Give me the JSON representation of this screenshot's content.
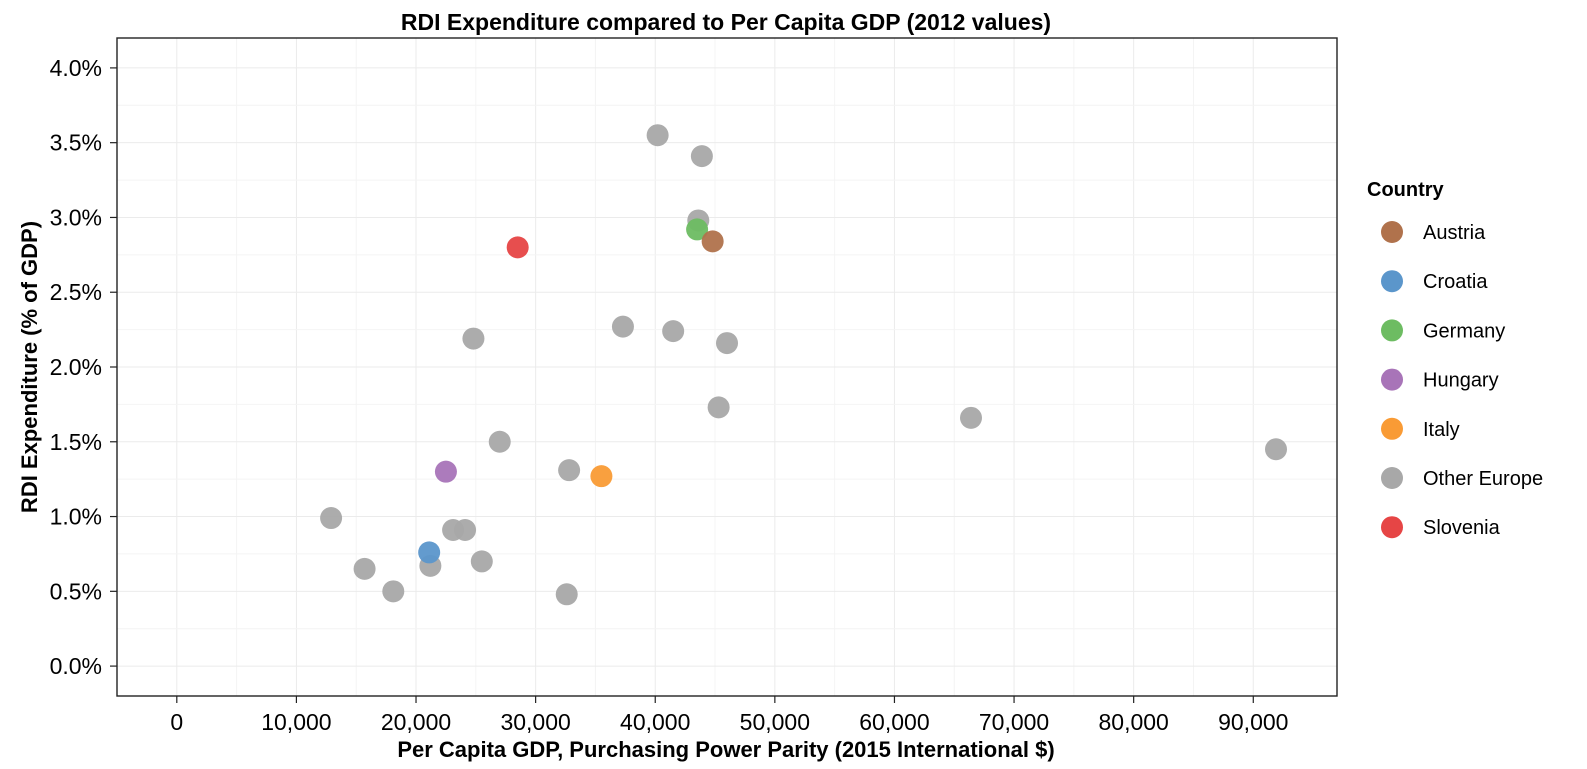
{
  "chart_data": {
    "type": "scatter",
    "title": "RDI Expenditure compared to Per Capita GDP (2012 values)",
    "xlabel": "Per Capita GDP, Purchasing Power Parity (2015 International $)",
    "ylabel": "RDI Expenditure (% of GDP)",
    "xlim": [
      -5000,
      97000
    ],
    "ylim": [
      -0.2,
      4.2
    ],
    "x_ticks": [
      0,
      10000,
      20000,
      30000,
      40000,
      50000,
      60000,
      70000,
      80000,
      90000
    ],
    "x_tick_labels": [
      "0",
      "10,000",
      "20,000",
      "30,000",
      "40,000",
      "50,000",
      "60,000",
      "70,000",
      "80,000",
      "90,000"
    ],
    "y_ticks": [
      0.0,
      0.5,
      1.0,
      1.5,
      2.0,
      2.5,
      3.0,
      3.5,
      4.0
    ],
    "y_tick_labels": [
      "0.0%",
      "0.5%",
      "1.0%",
      "1.5%",
      "2.0%",
      "2.5%",
      "3.0%",
      "3.5%",
      "4.0%"
    ],
    "grid": true,
    "legend": {
      "title": "Country",
      "placement": "right",
      "entries": [
        {
          "name": "Austria",
          "color": "#b0724c"
        },
        {
          "name": "Croatia",
          "color": "#5b96cb"
        },
        {
          "name": "Germany",
          "color": "#6dbc62"
        },
        {
          "name": "Hungary",
          "color": "#a874b8"
        },
        {
          "name": "Italy",
          "color": "#f99b35"
        },
        {
          "name": "Other Europe",
          "color": "#a8a8a8"
        },
        {
          "name": "Slovenia",
          "color": "#e64545"
        }
      ]
    },
    "series": [
      {
        "name": "Other Europe",
        "points": [
          {
            "x": 40200,
            "y": 3.55
          },
          {
            "x": 43900,
            "y": 3.41
          },
          {
            "x": 43600,
            "y": 2.98
          },
          {
            "x": 37300,
            "y": 2.27
          },
          {
            "x": 41500,
            "y": 2.24
          },
          {
            "x": 46000,
            "y": 2.16
          },
          {
            "x": 24800,
            "y": 2.19
          },
          {
            "x": 45300,
            "y": 1.73
          },
          {
            "x": 66400,
            "y": 1.66
          },
          {
            "x": 91900,
            "y": 1.45
          },
          {
            "x": 27000,
            "y": 1.5
          },
          {
            "x": 32800,
            "y": 1.31
          },
          {
            "x": 12900,
            "y": 0.99
          },
          {
            "x": 23100,
            "y": 0.91
          },
          {
            "x": 24100,
            "y": 0.91
          },
          {
            "x": 15700,
            "y": 0.65
          },
          {
            "x": 21200,
            "y": 0.67
          },
          {
            "x": 25500,
            "y": 0.7
          },
          {
            "x": 18100,
            "y": 0.5
          },
          {
            "x": 32600,
            "y": 0.48
          }
        ]
      },
      {
        "name": "Germany",
        "points": [
          {
            "x": 43500,
            "y": 2.92
          }
        ]
      },
      {
        "name": "Austria",
        "points": [
          {
            "x": 44800,
            "y": 2.84
          }
        ]
      },
      {
        "name": "Slovenia",
        "points": [
          {
            "x": 28500,
            "y": 2.8
          }
        ]
      },
      {
        "name": "Hungary",
        "points": [
          {
            "x": 22500,
            "y": 1.3
          }
        ]
      },
      {
        "name": "Italy",
        "points": [
          {
            "x": 35500,
            "y": 1.27
          }
        ]
      },
      {
        "name": "Croatia",
        "points": [
          {
            "x": 21100,
            "y": 0.76
          }
        ]
      }
    ]
  }
}
